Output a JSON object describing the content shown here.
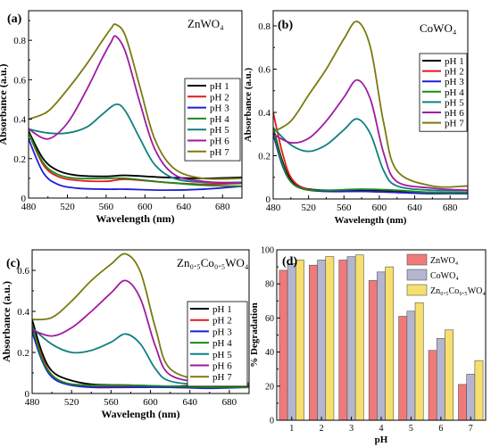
{
  "chart_data": [
    {
      "type": "line",
      "panel": "(a)",
      "material": "ZnWO₄",
      "xlabel": "Wavelength (nm)",
      "ylabel": "Absorbance (a.u.)",
      "xlim": [
        480,
        700
      ],
      "ylim": [
        0.0,
        0.95
      ],
      "xticks": [
        480,
        520,
        560,
        600,
        640,
        680
      ],
      "yticks": [
        0.0,
        0.2,
        0.4,
        0.6,
        0.8
      ],
      "legend_position": "center-right",
      "series": [
        {
          "name": "pH 1",
          "color": "#000000",
          "x": [
            480,
            495,
            510,
            530,
            560,
            580,
            620,
            660,
            700
          ],
          "y": [
            0.34,
            0.2,
            0.14,
            0.115,
            0.11,
            0.115,
            0.105,
            0.1,
            0.105
          ]
        },
        {
          "name": "pH 2",
          "color": "#e41a1c",
          "x": [
            480,
            495,
            510,
            530,
            560,
            580,
            620,
            660,
            700
          ],
          "y": [
            0.33,
            0.17,
            0.11,
            0.09,
            0.085,
            0.095,
            0.08,
            0.07,
            0.075
          ]
        },
        {
          "name": "pH 3",
          "color": "#1f1fd8",
          "x": [
            480,
            495,
            510,
            530,
            560,
            580,
            620,
            660,
            700
          ],
          "y": [
            0.3,
            0.13,
            0.07,
            0.05,
            0.045,
            0.045,
            0.04,
            0.045,
            0.06
          ]
        },
        {
          "name": "pH 4",
          "color": "#1a8a1a",
          "x": [
            480,
            495,
            510,
            530,
            560,
            580,
            620,
            660,
            700
          ],
          "y": [
            0.33,
            0.18,
            0.12,
            0.1,
            0.1,
            0.1,
            0.08,
            0.065,
            0.06
          ]
        },
        {
          "name": "pH 5",
          "color": "#0f8080",
          "x": [
            480,
            500,
            520,
            540,
            555,
            570,
            580,
            595,
            610,
            630,
            660,
            700
          ],
          "y": [
            0.35,
            0.33,
            0.33,
            0.36,
            0.42,
            0.475,
            0.44,
            0.3,
            0.17,
            0.1,
            0.08,
            0.08
          ]
        },
        {
          "name": "pH 6",
          "color": "#a01aa0",
          "x": [
            480,
            500,
            520,
            540,
            555,
            565,
            570,
            580,
            595,
            610,
            630,
            660,
            700
          ],
          "y": [
            0.35,
            0.3,
            0.38,
            0.55,
            0.7,
            0.79,
            0.82,
            0.74,
            0.48,
            0.25,
            0.12,
            0.085,
            0.075
          ]
        },
        {
          "name": "pH 7",
          "color": "#7a7a10",
          "x": [
            480,
            500,
            520,
            540,
            555,
            565,
            570,
            580,
            595,
            610,
            630,
            660,
            700
          ],
          "y": [
            0.4,
            0.44,
            0.55,
            0.68,
            0.79,
            0.86,
            0.88,
            0.82,
            0.56,
            0.3,
            0.15,
            0.1,
            0.1
          ]
        }
      ]
    },
    {
      "type": "line",
      "panel": "(b)",
      "material": "CoWO₄",
      "xlabel": "Wavelength (nm)",
      "ylabel": "Absorbance (a.u.)",
      "xlim": [
        480,
        700
      ],
      "ylim": [
        0.0,
        0.87
      ],
      "xticks": [
        480,
        520,
        560,
        600,
        640,
        680
      ],
      "yticks": [
        0.0,
        0.2,
        0.4,
        0.6,
        0.8
      ],
      "legend_position": "center-right",
      "series": [
        {
          "name": "pH 1",
          "color": "#000000",
          "x": [
            480,
            490,
            500,
            515,
            540,
            580,
            620,
            660,
            700
          ],
          "y": [
            0.33,
            0.18,
            0.09,
            0.05,
            0.04,
            0.04,
            0.035,
            0.03,
            0.03
          ]
        },
        {
          "name": "pH 2",
          "color": "#e41a1c",
          "x": [
            480,
            490,
            500,
            515,
            540,
            580,
            620,
            660,
            700
          ],
          "y": [
            0.4,
            0.22,
            0.1,
            0.05,
            0.035,
            0.035,
            0.03,
            0.025,
            0.03
          ]
        },
        {
          "name": "pH 3",
          "color": "#1f1fd8",
          "x": [
            480,
            490,
            500,
            515,
            540,
            580,
            620,
            660,
            700
          ],
          "y": [
            0.3,
            0.16,
            0.08,
            0.045,
            0.035,
            0.035,
            0.03,
            0.025,
            0.025
          ]
        },
        {
          "name": "pH 4",
          "color": "#1a8a1a",
          "x": [
            480,
            490,
            500,
            515,
            540,
            580,
            620,
            660,
            700
          ],
          "y": [
            0.32,
            0.17,
            0.08,
            0.045,
            0.04,
            0.045,
            0.04,
            0.03,
            0.03
          ]
        },
        {
          "name": "pH 5",
          "color": "#0f8080",
          "x": [
            480,
            500,
            520,
            540,
            560,
            575,
            590,
            605,
            620,
            660,
            700
          ],
          "y": [
            0.33,
            0.25,
            0.22,
            0.25,
            0.32,
            0.37,
            0.3,
            0.13,
            0.06,
            0.04,
            0.04
          ]
        },
        {
          "name": "pH 6",
          "color": "#a01aa0",
          "x": [
            480,
            500,
            520,
            540,
            560,
            575,
            590,
            605,
            620,
            660,
            700
          ],
          "y": [
            0.3,
            0.26,
            0.28,
            0.36,
            0.47,
            0.55,
            0.46,
            0.21,
            0.08,
            0.05,
            0.04
          ]
        },
        {
          "name": "pH 7",
          "color": "#7a7a10",
          "x": [
            480,
            500,
            520,
            540,
            560,
            575,
            590,
            605,
            620,
            660,
            700
          ],
          "y": [
            0.31,
            0.36,
            0.48,
            0.6,
            0.74,
            0.82,
            0.7,
            0.35,
            0.13,
            0.06,
            0.06
          ]
        }
      ]
    },
    {
      "type": "line",
      "panel": "(c)",
      "material": "Zn₀.₅Co₀.₅WO₄",
      "xlabel": "Wavelength (nm)",
      "ylabel": "Absorbance (a.u.)",
      "xlim": [
        480,
        700
      ],
      "ylim": [
        0.0,
        0.7
      ],
      "xticks": [
        480,
        520,
        560,
        600,
        640,
        680
      ],
      "yticks": [
        0.0,
        0.2,
        0.4,
        0.6
      ],
      "legend_position": "center-right",
      "series": [
        {
          "name": "pH 1",
          "color": "#000000",
          "x": [
            480,
            490,
            500,
            515,
            540,
            580,
            620,
            660,
            700
          ],
          "y": [
            0.36,
            0.2,
            0.11,
            0.07,
            0.045,
            0.04,
            0.035,
            0.04,
            0.05
          ]
        },
        {
          "name": "pH 2",
          "color": "#e41a1c",
          "x": [
            480,
            490,
            500,
            515,
            540,
            580,
            620,
            660,
            700
          ],
          "y": [
            0.33,
            0.18,
            0.09,
            0.05,
            0.035,
            0.035,
            0.03,
            0.03,
            0.035
          ]
        },
        {
          "name": "pH 3",
          "color": "#1f1fd8",
          "x": [
            480,
            490,
            500,
            515,
            540,
            580,
            620,
            660,
            700
          ],
          "y": [
            0.3,
            0.16,
            0.08,
            0.045,
            0.03,
            0.03,
            0.03,
            0.025,
            0.03
          ]
        },
        {
          "name": "pH 4",
          "color": "#1a8a1a",
          "x": [
            480,
            490,
            500,
            515,
            540,
            580,
            620,
            660,
            700
          ],
          "y": [
            0.33,
            0.17,
            0.09,
            0.05,
            0.04,
            0.04,
            0.035,
            0.03,
            0.03
          ]
        },
        {
          "name": "pH 5",
          "color": "#0f8080",
          "x": [
            480,
            500,
            520,
            540,
            560,
            575,
            590,
            605,
            620,
            660,
            700
          ],
          "y": [
            0.32,
            0.24,
            0.2,
            0.21,
            0.25,
            0.29,
            0.24,
            0.12,
            0.06,
            0.04,
            0.04
          ]
        },
        {
          "name": "pH 6",
          "color": "#a01aa0",
          "x": [
            480,
            500,
            520,
            540,
            560,
            575,
            590,
            605,
            620,
            660,
            700
          ],
          "y": [
            0.31,
            0.28,
            0.32,
            0.4,
            0.49,
            0.55,
            0.46,
            0.23,
            0.09,
            0.05,
            0.04
          ]
        },
        {
          "name": "pH 7",
          "color": "#7a7a10",
          "x": [
            480,
            500,
            520,
            540,
            560,
            575,
            590,
            605,
            620,
            660,
            700
          ],
          "y": [
            0.36,
            0.37,
            0.45,
            0.55,
            0.63,
            0.68,
            0.59,
            0.32,
            0.12,
            0.06,
            0.05
          ]
        }
      ]
    },
    {
      "type": "bar",
      "panel": "(d)",
      "xlabel": "pH",
      "ylabel": "% Degradation",
      "ylim": [
        0,
        100
      ],
      "yticks": [
        0,
        20,
        40,
        60,
        80,
        100
      ],
      "categories": [
        "1",
        "2",
        "3",
        "4",
        "5",
        "6",
        "7"
      ],
      "legend_position": "top-right",
      "series": [
        {
          "name": "ZnWO₄",
          "color": "#f07a7a",
          "values": [
            88,
            91,
            94,
            82,
            61,
            41,
            21
          ]
        },
        {
          "name": "CoWO₄",
          "color": "#b5b5cf",
          "values": [
            92,
            94,
            96,
            87,
            64,
            48,
            27
          ]
        },
        {
          "name": "Zn₀.₅Co₀.₅WO₄",
          "color": "#f7df6e",
          "values": [
            94,
            96,
            97,
            90,
            69,
            53,
            35
          ]
        }
      ]
    }
  ]
}
